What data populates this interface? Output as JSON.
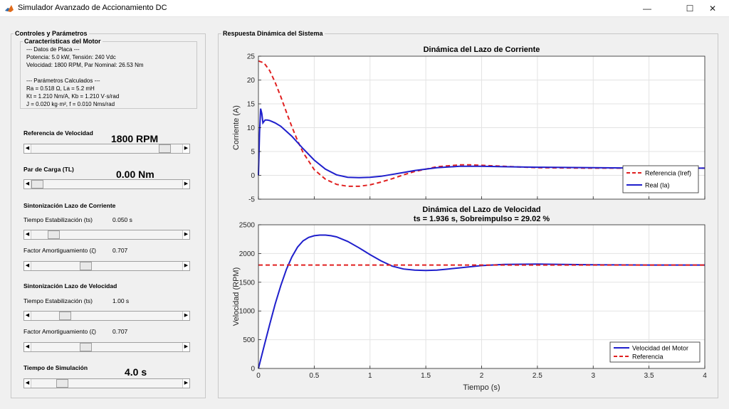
{
  "window": {
    "title": "Simulador Avanzado de Accionamiento DC",
    "minimize": "—",
    "maximize": "☐",
    "close": "✕"
  },
  "controls": {
    "panel_title": "Controles y Parámetros",
    "motor": {
      "title": "Características del Motor",
      "lines": [
        "--- Datos de Placa ---",
        "Potencia: 5.0 kW, Tensión: 240 Vdc",
        "Velocidad: 1800 RPM, Par Nominal: 26.53 Nm",
        "",
        "--- Parámetros Calculados ---",
        "Ra = 0.518 Ω, La = 5.2 mH",
        "Kt = 1.210 Nm/A, Kb = 1.210 V·s/rad",
        "J = 0.020 kg·m², f = 0.010 Nms/rad"
      ]
    },
    "speed_ref": {
      "label": "Referencia de Velocidad",
      "value": "1800 RPM",
      "fraction": 0.92
    },
    "load_torque": {
      "label": "Par de Carga (TL)",
      "value": "0.00 Nm",
      "fraction": 0.0
    },
    "current_loop": {
      "title": "Sintonización Lazo de Corriente",
      "ts_label": "Tiempo Estabilización (ts)",
      "ts_value": "0.050 s",
      "ts_fraction": 0.12,
      "zeta_label": "Factor Amortiguamiento (ζ)",
      "zeta_value": "0.707",
      "zeta_fraction": 0.35
    },
    "speed_loop": {
      "title": "Sintonización Lazo de Velocidad",
      "ts_label": "Tiempo Estabilización (ts)",
      "ts_value": "1.00 s",
      "ts_fraction": 0.2,
      "zeta_label": "Factor Amortiguamiento (ζ)",
      "zeta_value": "0.707",
      "zeta_fraction": 0.35
    },
    "sim_time": {
      "label": "Tiempo de Simulación",
      "value": "4.0 s",
      "fraction": 0.18
    }
  },
  "plots": {
    "panel_title": "Respuesta Dinámica del Sistema",
    "colors": {
      "real": "#1f1fcc",
      "ref": "#e02020"
    }
  },
  "chart_data": [
    {
      "type": "line",
      "title": "Dinámica del Lazo de Corriente",
      "xlabel": "",
      "ylabel": "Corriente (A)",
      "xlim": [
        0,
        4
      ],
      "ylim": [
        -5,
        25
      ],
      "yticks": [
        -5,
        0,
        5,
        10,
        15,
        20,
        25
      ],
      "xticks": [
        0,
        0.5,
        1,
        1.5,
        2,
        2.5,
        3,
        3.5,
        4
      ],
      "grid": true,
      "legend": "bottom-right",
      "series": [
        {
          "name": "Referencia (Iref)",
          "style": "dashed",
          "x": [
            0,
            0.05,
            0.1,
            0.15,
            0.2,
            0.25,
            0.3,
            0.35,
            0.4,
            0.5,
            0.6,
            0.7,
            0.8,
            0.9,
            1.0,
            1.1,
            1.2,
            1.3,
            1.4,
            1.5,
            1.6,
            1.7,
            1.8,
            1.9,
            2.0,
            2.2,
            2.5,
            3.0,
            3.5,
            4.0
          ],
          "y": [
            24,
            23.6,
            22,
            19.5,
            16.5,
            13.3,
            10.2,
            7.3,
            4.8,
            1.2,
            -0.8,
            -1.9,
            -2.3,
            -2.3,
            -2.0,
            -1.4,
            -0.7,
            0.1,
            0.8,
            1.3,
            1.8,
            2.0,
            2.2,
            2.2,
            2.1,
            1.9,
            1.6,
            1.5,
            1.5,
            1.5
          ]
        },
        {
          "name": "Real (Ia)",
          "style": "solid",
          "x": [
            0,
            0.01,
            0.02,
            0.03,
            0.04,
            0.05,
            0.06,
            0.08,
            0.1,
            0.15,
            0.2,
            0.3,
            0.4,
            0.5,
            0.6,
            0.7,
            0.8,
            0.9,
            1.0,
            1.1,
            1.2,
            1.3,
            1.4,
            1.5,
            1.6,
            1.8,
            2.0,
            2.2,
            2.5,
            3.0,
            3.5,
            4.0
          ],
          "y": [
            0,
            9,
            14,
            13,
            11,
            11.3,
            11.6,
            11.6,
            11.5,
            11.0,
            10.3,
            8.2,
            5.6,
            3.2,
            1.3,
            0.1,
            -0.4,
            -0.5,
            -0.4,
            -0.2,
            0.2,
            0.6,
            1.0,
            1.3,
            1.6,
            1.9,
            1.9,
            1.8,
            1.7,
            1.6,
            1.5,
            1.5
          ]
        }
      ]
    },
    {
      "type": "line",
      "title": "Dinámica del Lazo de Velocidad",
      "subtitle": "ts = 1.936 s, Sobreimpulso = 29.02 %",
      "xlabel": "Tiempo (s)",
      "ylabel": "Velocidad (RPM)",
      "xlim": [
        0,
        4
      ],
      "ylim": [
        0,
        2500
      ],
      "yticks": [
        0,
        500,
        1000,
        1500,
        2000,
        2500
      ],
      "xticks": [
        0,
        0.5,
        1,
        1.5,
        2,
        2.5,
        3,
        3.5,
        4
      ],
      "grid": true,
      "legend": "bottom-right",
      "series": [
        {
          "name": "Velocidad del Motor",
          "style": "solid",
          "x": [
            0,
            0.05,
            0.1,
            0.15,
            0.2,
            0.25,
            0.3,
            0.35,
            0.4,
            0.45,
            0.5,
            0.55,
            0.6,
            0.65,
            0.7,
            0.8,
            0.9,
            1.0,
            1.1,
            1.2,
            1.3,
            1.4,
            1.5,
            1.6,
            1.7,
            1.8,
            2.0,
            2.2,
            2.5,
            3.0,
            3.5,
            4.0
          ],
          "y": [
            0,
            380,
            760,
            1120,
            1440,
            1720,
            1940,
            2110,
            2220,
            2280,
            2310,
            2320,
            2320,
            2310,
            2290,
            2210,
            2100,
            1980,
            1870,
            1780,
            1730,
            1710,
            1705,
            1710,
            1730,
            1750,
            1790,
            1810,
            1815,
            1805,
            1800,
            1800
          ]
        },
        {
          "name": "Referencia",
          "style": "dashed",
          "x": [
            0,
            4
          ],
          "y": [
            1800,
            1800
          ]
        }
      ]
    }
  ]
}
